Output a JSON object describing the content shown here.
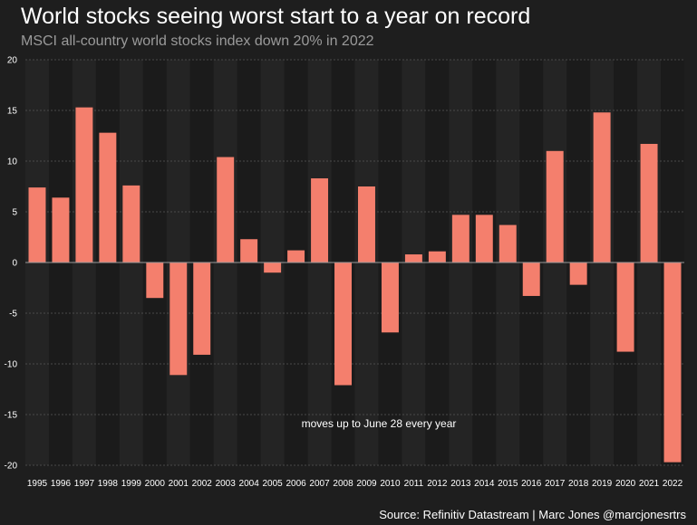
{
  "header": {
    "title": "World stocks seeing worst start to a year on record",
    "subtitle": "MSCI all-country world stocks index down 20% in 2022"
  },
  "footer": {
    "source": "Source: Refinitiv Datastream | Marc Jones @marcjonesrtrs"
  },
  "chart_data": {
    "type": "bar",
    "title": "World stocks seeing worst start to a year on record",
    "subtitle": "MSCI all-country world stocks index down 20% in 2022",
    "xlabel": "",
    "ylabel": "",
    "ylim": [
      -20,
      20
    ],
    "yticks": [
      20,
      15,
      10,
      5,
      0,
      -5,
      -10,
      -15,
      -20
    ],
    "grid": true,
    "bar_color": "#f47f6d",
    "categories": [
      "1995",
      "1996",
      "1997",
      "1998",
      "1999",
      "2000",
      "2001",
      "2002",
      "2003",
      "2004",
      "2005",
      "2006",
      "2007",
      "2008",
      "2009",
      "2010",
      "2011",
      "2012",
      "2013",
      "2014",
      "2015",
      "2016",
      "2017",
      "2018",
      "2019",
      "2020",
      "2021",
      "2022"
    ],
    "values": [
      7.4,
      6.4,
      15.3,
      12.8,
      7.6,
      -3.5,
      -11.1,
      -9.1,
      10.4,
      2.3,
      -1.0,
      1.2,
      8.3,
      -12.1,
      7.5,
      -6.9,
      0.8,
      1.1,
      4.7,
      4.7,
      3.7,
      -3.3,
      11.0,
      -2.2,
      14.8,
      -8.8,
      11.7,
      -19.7
    ],
    "annotation": "moves up to June 28 every year"
  }
}
